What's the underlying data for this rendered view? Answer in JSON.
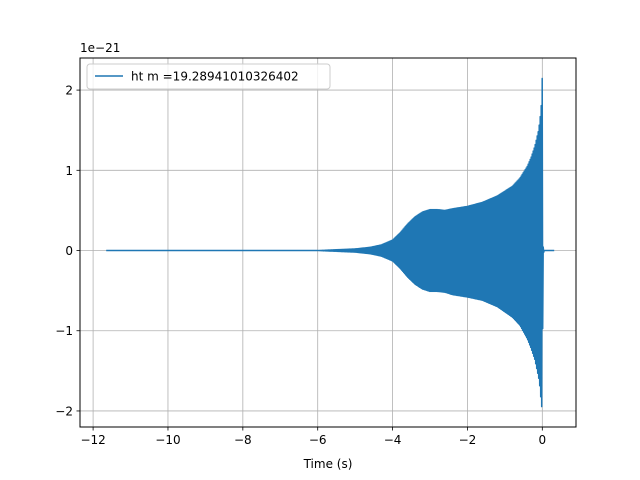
{
  "chart_data": {
    "type": "line",
    "title": "",
    "xlabel": "Time (s)",
    "ylabel": "",
    "y_offset_label": "1e−21",
    "xlim": [
      -12.35,
      0.9
    ],
    "ylim": [
      -2.2,
      2.4
    ],
    "xticks": [
      -12,
      -10,
      -8,
      -6,
      -4,
      -2,
      0
    ],
    "xtick_labels": [
      "−12",
      "−10",
      "−8",
      "−6",
      "−4",
      "−2",
      "0"
    ],
    "yticks": [
      -2,
      -1,
      0,
      1,
      2
    ],
    "ytick_labels": [
      "−2",
      "−1",
      "0",
      "1",
      "2"
    ],
    "grid": true,
    "legend_position": "top-left",
    "series": [
      {
        "name": "ht m =19.28941010326402",
        "color": "#1f77b4",
        "x_range": [
          -11.65,
          0.32
        ],
        "merger_time": 0.0,
        "envelope": {
          "t": [
            -11.65,
            -6.0,
            -5.5,
            -5.0,
            -4.6,
            -4.3,
            -4.0,
            -3.8,
            -3.6,
            -3.4,
            -3.2,
            -3.0,
            -2.8,
            -2.6,
            -2.4,
            -2.0,
            -1.6,
            -1.2,
            -0.8,
            -0.6,
            -0.4,
            -0.3,
            -0.2,
            -0.15,
            -0.1,
            -0.06,
            -0.03,
            0.0,
            0.02,
            0.05,
            0.1,
            0.32
          ],
          "upper": [
            0.0,
            0.0,
            0.01,
            0.02,
            0.04,
            0.07,
            0.13,
            0.22,
            0.33,
            0.42,
            0.48,
            0.51,
            0.51,
            0.5,
            0.52,
            0.55,
            0.6,
            0.68,
            0.8,
            0.9,
            1.05,
            1.16,
            1.3,
            1.4,
            1.5,
            1.65,
            1.8,
            2.18,
            0.05,
            0.0,
            0.0,
            0.0
          ],
          "lower": [
            0.0,
            0.0,
            -0.01,
            -0.02,
            -0.04,
            -0.07,
            -0.13,
            -0.22,
            -0.33,
            -0.42,
            -0.48,
            -0.51,
            -0.51,
            -0.52,
            -0.55,
            -0.58,
            -0.62,
            -0.7,
            -0.83,
            -0.93,
            -1.1,
            -1.22,
            -1.36,
            -1.47,
            -1.58,
            -1.72,
            -1.9,
            -2.0,
            -0.05,
            0.0,
            0.0,
            0.0
          ]
        }
      }
    ]
  }
}
